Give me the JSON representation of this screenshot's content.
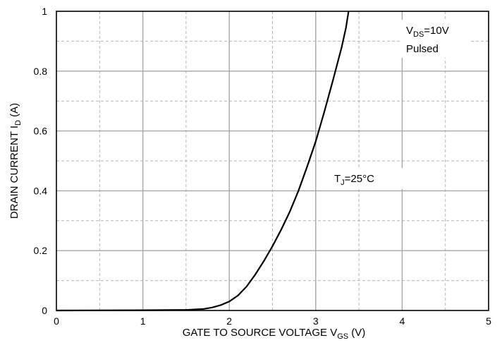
{
  "chart_data": {
    "type": "line",
    "xlabel": {
      "main": "GATE TO SOURCE VOLTAGE   V",
      "sub": "GS",
      "unit": " (V)"
    },
    "ylabel": {
      "main": "DRAIN CURRENT   I",
      "sub": "D",
      "unit": " (A)"
    },
    "xlim": [
      0,
      5
    ],
    "ylim": [
      0,
      1
    ],
    "x_ticks": [
      0,
      1,
      2,
      3,
      4,
      5
    ],
    "y_ticks": [
      0,
      0.2,
      0.4,
      0.6,
      0.8,
      1
    ],
    "x_tick_labels": [
      "0",
      "1",
      "2",
      "3",
      "4",
      "5"
    ],
    "y_tick_labels": [
      "0",
      "0.2",
      "0.4",
      "0.6",
      "0.8",
      "1"
    ],
    "x_minor_step": 0.5,
    "y_minor_step": 0.1,
    "grid": true,
    "annotations": [
      {
        "main": "V",
        "sub": "DS",
        "rest": "=10V"
      },
      {
        "main": "Pulsed"
      },
      {
        "main": "T",
        "sub": "J",
        "rest": "=25°C"
      }
    ],
    "series": [
      {
        "color": "#000000",
        "x": [
          0,
          1,
          1.5,
          1.7,
          1.8,
          1.9,
          2.0,
          2.1,
          2.2,
          2.3,
          2.4,
          2.5,
          2.6,
          2.7,
          2.8,
          2.9,
          3.0,
          3.1,
          3.2,
          3.3,
          3.35,
          3.38
        ],
        "y": [
          0,
          0.001,
          0.002,
          0.005,
          0.01,
          0.018,
          0.03,
          0.05,
          0.08,
          0.12,
          0.165,
          0.215,
          0.27,
          0.33,
          0.4,
          0.48,
          0.565,
          0.665,
          0.77,
          0.88,
          0.945,
          1.0
        ]
      }
    ]
  }
}
